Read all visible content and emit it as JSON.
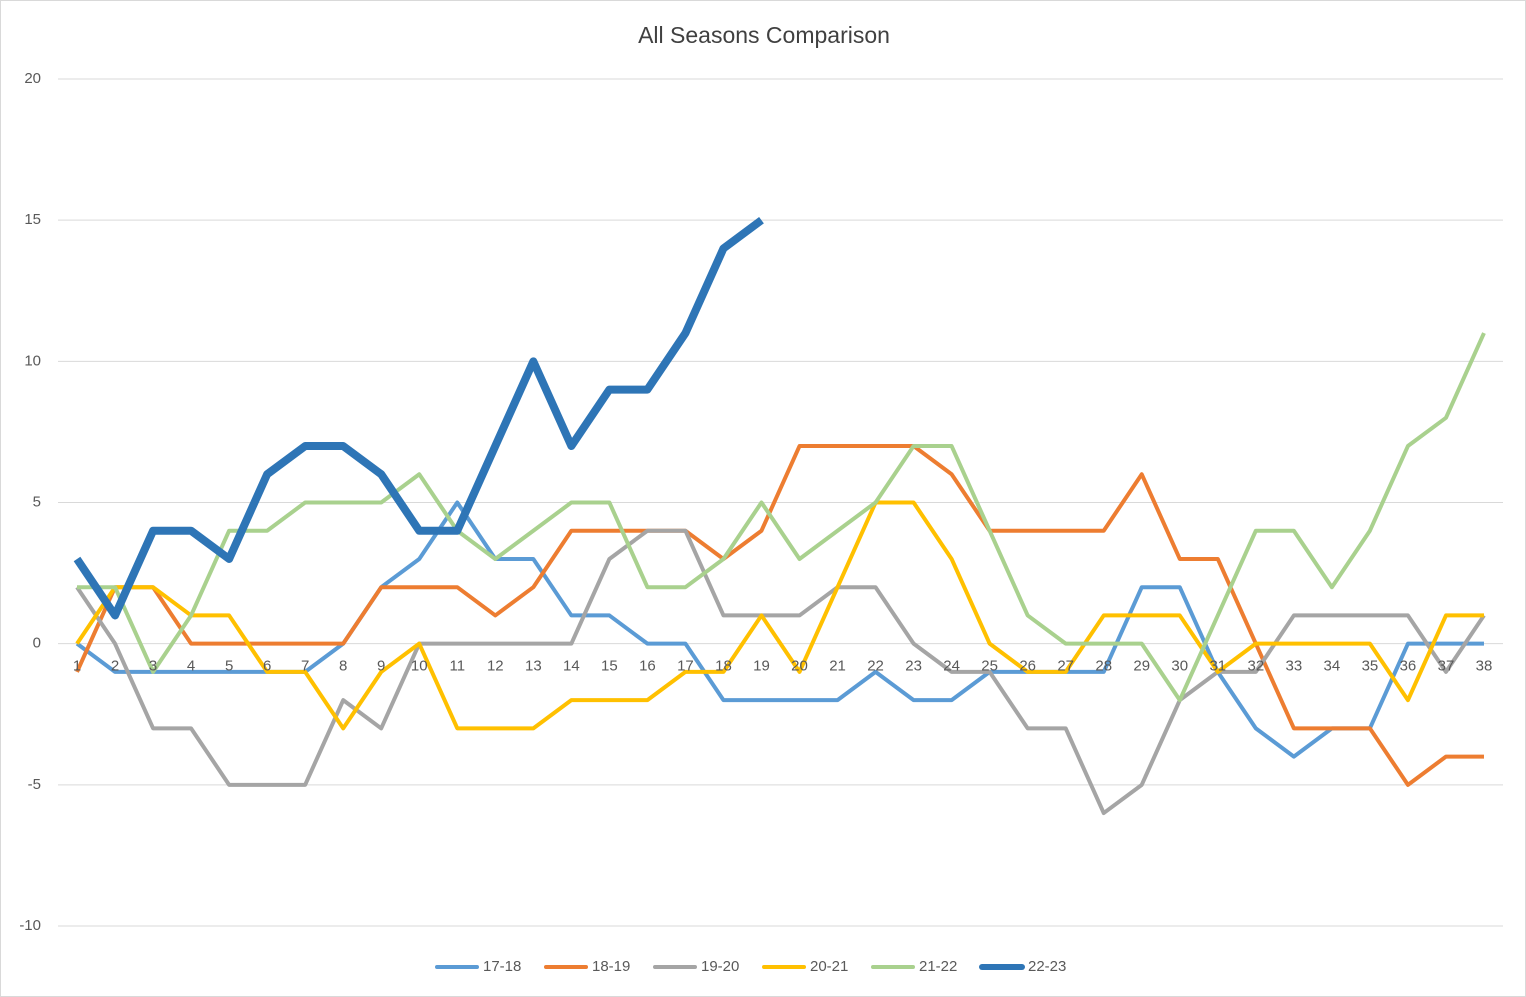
{
  "chart_data": {
    "type": "line",
    "title": "All Seasons Comparison",
    "categories": [
      "1",
      "2",
      "3",
      "4",
      "5",
      "6",
      "7",
      "8",
      "9",
      "10",
      "11",
      "12",
      "13",
      "14",
      "15",
      "16",
      "17",
      "18",
      "19",
      "20",
      "21",
      "22",
      "23",
      "24",
      "25",
      "26",
      "27",
      "28",
      "29",
      "30",
      "31",
      "32",
      "33",
      "34",
      "35",
      "36",
      "37",
      "38"
    ],
    "ylim": [
      -10,
      20
    ],
    "yticks": [
      -10,
      -5,
      0,
      5,
      10,
      15,
      20
    ],
    "grid": true,
    "legend": "bottom",
    "series": [
      {
        "name": "17-18",
        "color": "#5b9bd5",
        "values": [
          0,
          -1,
          -1,
          -1,
          -1,
          -1,
          -1,
          0,
          2,
          3,
          5,
          3,
          3,
          1,
          1,
          0,
          0,
          -2,
          -2,
          -2,
          -2,
          -1,
          -2,
          -2,
          -1,
          -1,
          -1,
          -1,
          2,
          2,
          -1,
          -3,
          -4,
          -3,
          -3,
          0,
          0,
          0
        ]
      },
      {
        "name": "18-19",
        "color": "#ed7d31",
        "values": [
          -1,
          2,
          2,
          0,
          0,
          0,
          0,
          0,
          2,
          2,
          2,
          1,
          2,
          4,
          4,
          4,
          4,
          3,
          4,
          7,
          7,
          7,
          7,
          6,
          4,
          4,
          4,
          4,
          6,
          3,
          3,
          0,
          -3,
          -3,
          -3,
          -5,
          -4,
          -4
        ]
      },
      {
        "name": "19-20",
        "color": "#a5a5a5",
        "values": [
          2,
          0,
          -3,
          -3,
          -5,
          -5,
          -5,
          -2,
          -3,
          0,
          0,
          0,
          0,
          0,
          3,
          4,
          4,
          1,
          1,
          1,
          2,
          2,
          0,
          -1,
          -1,
          -3,
          -3,
          -6,
          -5,
          -2,
          -1,
          -1,
          1,
          1,
          1,
          1,
          -1,
          1
        ]
      },
      {
        "name": "20-21",
        "color": "#ffc000",
        "values": [
          0,
          2,
          2,
          1,
          1,
          -1,
          -1,
          -3,
          -1,
          0,
          -3,
          -3,
          -3,
          -2,
          -2,
          -2,
          -1,
          -1,
          1,
          -1,
          2,
          5,
          5,
          3,
          0,
          -1,
          -1,
          1,
          1,
          1,
          -1,
          0,
          0,
          0,
          0,
          -2,
          1,
          1
        ]
      },
      {
        "name": "21-22",
        "color": "#a9d18e",
        "values": [
          2,
          2,
          -1,
          1,
          4,
          4,
          5,
          5,
          5,
          6,
          4,
          3,
          4,
          5,
          5,
          2,
          2,
          3,
          5,
          3,
          4,
          5,
          7,
          7,
          4,
          1,
          0,
          0,
          0,
          -2,
          1,
          4,
          4,
          2,
          4,
          7,
          8,
          11
        ]
      },
      {
        "name": "22-23",
        "color": "#2e75b6",
        "values": [
          3,
          1,
          4,
          4,
          3,
          6,
          7,
          7,
          6,
          4,
          4,
          7,
          10,
          7,
          9,
          9,
          11,
          14,
          15,
          null,
          null,
          null,
          null,
          null,
          null,
          null,
          null,
          null,
          null,
          null,
          null,
          null,
          null,
          null,
          null,
          null,
          null,
          null
        ]
      }
    ]
  }
}
